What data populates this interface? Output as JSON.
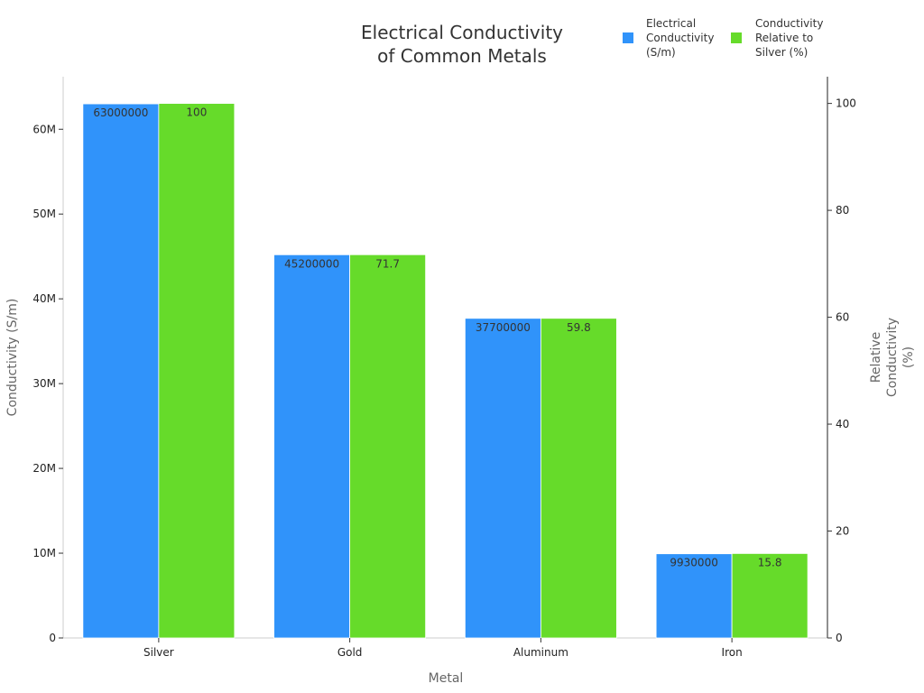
{
  "chart_data": {
    "type": "bar",
    "title": [
      "Electrical Conductivity",
      "of Common Metals"
    ],
    "xlabel": "Metal",
    "ylabel": "Conductivity (S/m)",
    "y2label": [
      "Relative",
      "Conductivity",
      "(%)"
    ],
    "categories": [
      "Silver",
      "Gold",
      "Aluminum",
      "Iron"
    ],
    "series": [
      {
        "name": [
          "Electrical",
          "Conductivity",
          "(S/m)"
        ],
        "axis": "left",
        "color": "#3093fa",
        "values": [
          63000000,
          45200000,
          37700000,
          9930000
        ],
        "labels": [
          "63000000",
          "45200000",
          "37700000",
          "9930000"
        ]
      },
      {
        "name": [
          "Conductivity",
          "Relative to",
          "Silver (%)"
        ],
        "axis": "right",
        "color": "#66db2a",
        "values": [
          100,
          71.7,
          59.8,
          15.8
        ],
        "labels": [
          "100",
          "71.7",
          "59.8",
          "15.8"
        ]
      }
    ],
    "ylim": [
      0,
      66200000
    ],
    "y2lim": [
      0,
      105
    ],
    "yticks": [
      0,
      10000000,
      20000000,
      30000000,
      40000000,
      50000000,
      60000000
    ],
    "ytick_labels": [
      "0",
      "10M",
      "20M",
      "30M",
      "40M",
      "50M",
      "60M"
    ],
    "y2ticks": [
      0,
      20,
      40,
      60,
      80,
      100
    ],
    "y2tick_labels": [
      "0",
      "20",
      "40",
      "60",
      "80",
      "100"
    ],
    "grid": false,
    "legend": "top-right"
  }
}
